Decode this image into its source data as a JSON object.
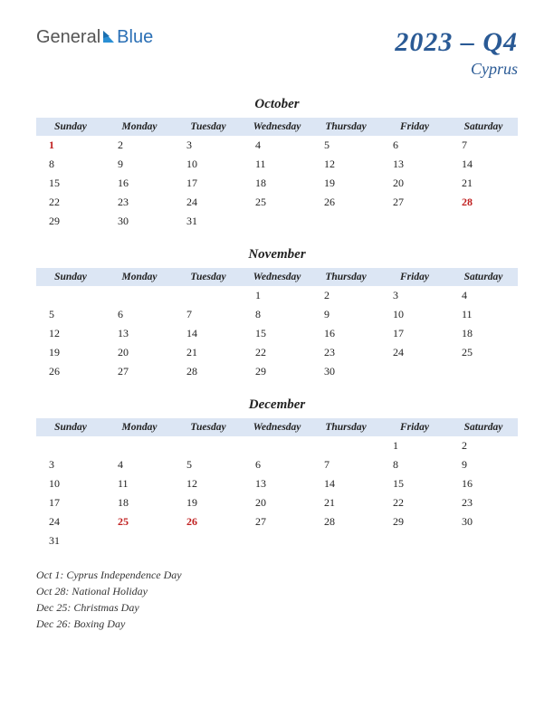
{
  "brand": {
    "part1": "General",
    "part2": "Blue"
  },
  "title": "2023 – Q4",
  "subtitle": "Cyprus",
  "day_headers": [
    "Sunday",
    "Monday",
    "Tuesday",
    "Wednesday",
    "Thursday",
    "Friday",
    "Saturday"
  ],
  "months": [
    {
      "name": "October",
      "weeks": [
        [
          {
            "d": "1",
            "h": true
          },
          {
            "d": "2"
          },
          {
            "d": "3"
          },
          {
            "d": "4"
          },
          {
            "d": "5"
          },
          {
            "d": "6"
          },
          {
            "d": "7"
          }
        ],
        [
          {
            "d": "8"
          },
          {
            "d": "9"
          },
          {
            "d": "10"
          },
          {
            "d": "11"
          },
          {
            "d": "12"
          },
          {
            "d": "13"
          },
          {
            "d": "14"
          }
        ],
        [
          {
            "d": "15"
          },
          {
            "d": "16"
          },
          {
            "d": "17"
          },
          {
            "d": "18"
          },
          {
            "d": "19"
          },
          {
            "d": "20"
          },
          {
            "d": "21"
          }
        ],
        [
          {
            "d": "22"
          },
          {
            "d": "23"
          },
          {
            "d": "24"
          },
          {
            "d": "25"
          },
          {
            "d": "26"
          },
          {
            "d": "27"
          },
          {
            "d": "28",
            "h": true
          }
        ],
        [
          {
            "d": "29"
          },
          {
            "d": "30"
          },
          {
            "d": "31"
          },
          {
            "d": ""
          },
          {
            "d": ""
          },
          {
            "d": ""
          },
          {
            "d": ""
          }
        ]
      ]
    },
    {
      "name": "November",
      "weeks": [
        [
          {
            "d": ""
          },
          {
            "d": ""
          },
          {
            "d": ""
          },
          {
            "d": "1"
          },
          {
            "d": "2"
          },
          {
            "d": "3"
          },
          {
            "d": "4"
          }
        ],
        [
          {
            "d": "5"
          },
          {
            "d": "6"
          },
          {
            "d": "7"
          },
          {
            "d": "8"
          },
          {
            "d": "9"
          },
          {
            "d": "10"
          },
          {
            "d": "11"
          }
        ],
        [
          {
            "d": "12"
          },
          {
            "d": "13"
          },
          {
            "d": "14"
          },
          {
            "d": "15"
          },
          {
            "d": "16"
          },
          {
            "d": "17"
          },
          {
            "d": "18"
          }
        ],
        [
          {
            "d": "19"
          },
          {
            "d": "20"
          },
          {
            "d": "21"
          },
          {
            "d": "22"
          },
          {
            "d": "23"
          },
          {
            "d": "24"
          },
          {
            "d": "25"
          }
        ],
        [
          {
            "d": "26"
          },
          {
            "d": "27"
          },
          {
            "d": "28"
          },
          {
            "d": "29"
          },
          {
            "d": "30"
          },
          {
            "d": ""
          },
          {
            "d": ""
          }
        ]
      ]
    },
    {
      "name": "December",
      "weeks": [
        [
          {
            "d": ""
          },
          {
            "d": ""
          },
          {
            "d": ""
          },
          {
            "d": ""
          },
          {
            "d": ""
          },
          {
            "d": "1"
          },
          {
            "d": "2"
          }
        ],
        [
          {
            "d": "3"
          },
          {
            "d": "4"
          },
          {
            "d": "5"
          },
          {
            "d": "6"
          },
          {
            "d": "7"
          },
          {
            "d": "8"
          },
          {
            "d": "9"
          }
        ],
        [
          {
            "d": "10"
          },
          {
            "d": "11"
          },
          {
            "d": "12"
          },
          {
            "d": "13"
          },
          {
            "d": "14"
          },
          {
            "d": "15"
          },
          {
            "d": "16"
          }
        ],
        [
          {
            "d": "17"
          },
          {
            "d": "18"
          },
          {
            "d": "19"
          },
          {
            "d": "20"
          },
          {
            "d": "21"
          },
          {
            "d": "22"
          },
          {
            "d": "23"
          }
        ],
        [
          {
            "d": "24"
          },
          {
            "d": "25",
            "h": true
          },
          {
            "d": "26",
            "h": true
          },
          {
            "d": "27"
          },
          {
            "d": "28"
          },
          {
            "d": "29"
          },
          {
            "d": "30"
          }
        ],
        [
          {
            "d": "31"
          },
          {
            "d": ""
          },
          {
            "d": ""
          },
          {
            "d": ""
          },
          {
            "d": ""
          },
          {
            "d": ""
          },
          {
            "d": ""
          }
        ]
      ]
    }
  ],
  "holidays": [
    "Oct 1: Cyprus Independence Day",
    "Oct 28: National Holiday",
    "Dec 25: Christmas Day",
    "Dec 26: Boxing Day"
  ],
  "colors": {
    "header_bg": "#dce6f4",
    "title_color": "#2a5a95",
    "holiday_color": "#c02020"
  }
}
